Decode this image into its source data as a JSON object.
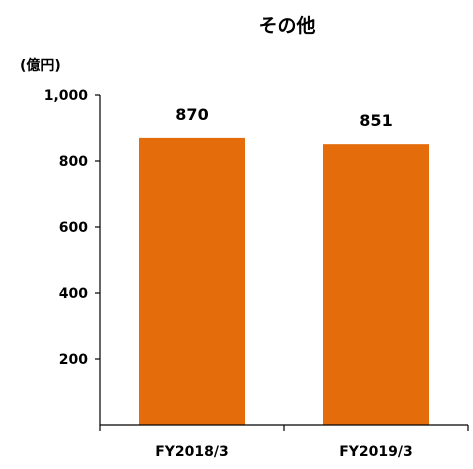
{
  "chart_data": {
    "type": "bar",
    "title": "その他",
    "unit_label": "(億円)",
    "categories": [
      "FY2018/3",
      "FY2019/3"
    ],
    "values": [
      870,
      851
    ],
    "data_labels": [
      "870",
      "851"
    ],
    "ylim": [
      0,
      1000
    ],
    "yticks": [
      200,
      400,
      600,
      800,
      1000
    ],
    "ytick_labels": [
      "200",
      "400",
      "600",
      "800",
      "1,000"
    ],
    "grid": false,
    "legend": "none",
    "bar_color": "#E46C0A"
  }
}
